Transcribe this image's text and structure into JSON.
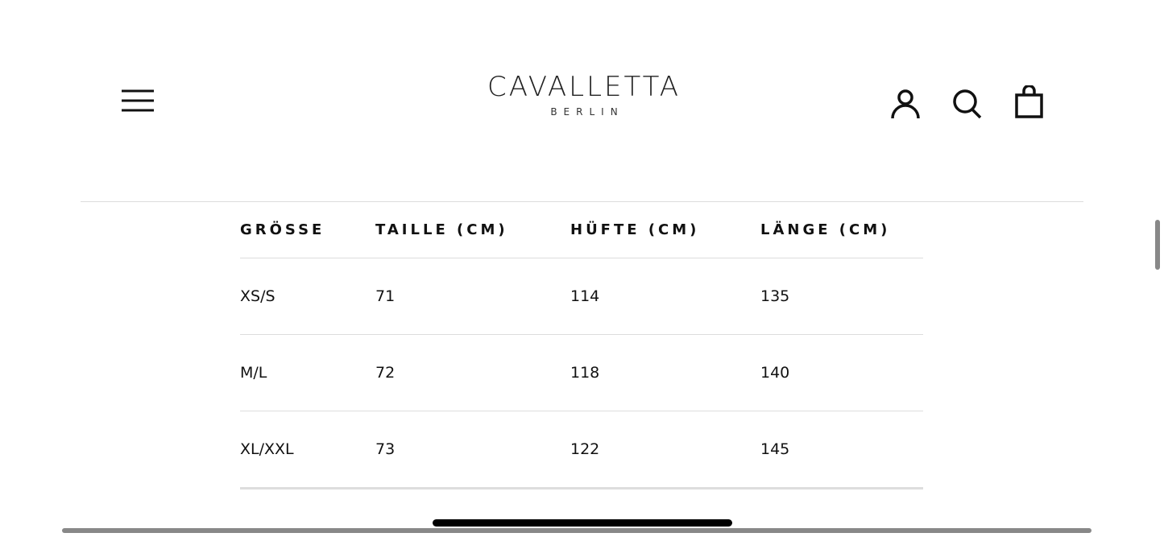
{
  "header": {
    "logo": {
      "name": "CAVALLETTA",
      "tagline": "BERLIN"
    },
    "icons": [
      "menu-icon",
      "account-icon",
      "search-icon",
      "cart-icon"
    ]
  },
  "size_table": {
    "headers": [
      "GRÖSSE",
      "TAILLE (CM)",
      "HÜFTE (CM)",
      "LÄNGE (CM)"
    ],
    "rows": [
      [
        "XS/S",
        "71",
        "114",
        "135"
      ],
      [
        "M/L",
        "72",
        "118",
        "140"
      ],
      [
        "XL/XXL",
        "73",
        "122",
        "145"
      ]
    ]
  }
}
